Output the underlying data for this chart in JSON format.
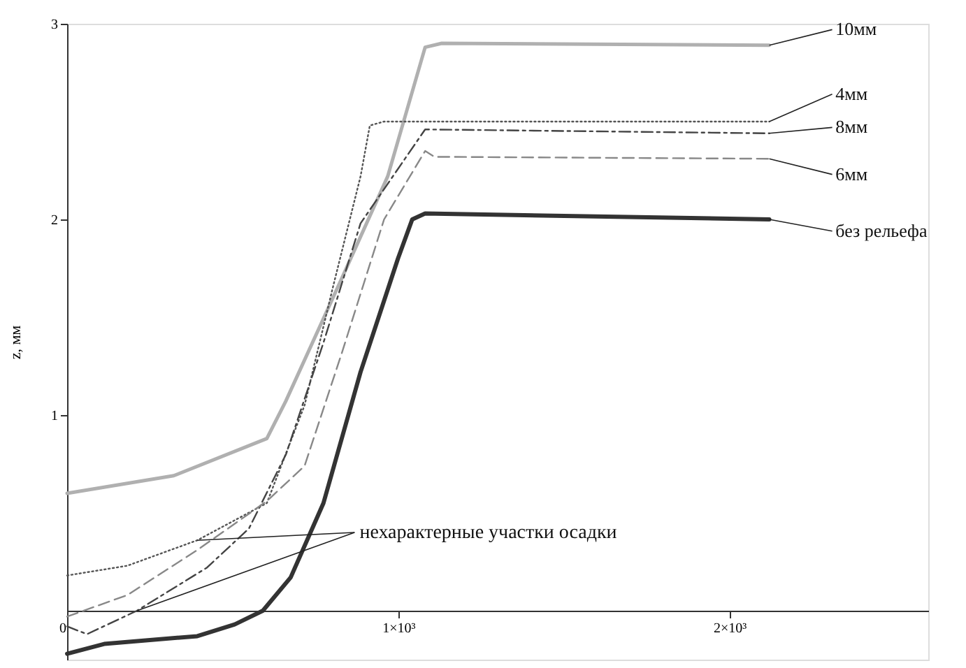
{
  "chart_data": {
    "type": "line",
    "ylabel": "z, мм",
    "xlim": [
      0,
      2600
    ],
    "ylim": [
      -0.25,
      3
    ],
    "xticks": [
      0,
      {
        "value": 1000,
        "label": "1×10³"
      },
      {
        "value": 2000,
        "label": "2×10³"
      }
    ],
    "yticks": [
      1,
      2,
      3
    ],
    "grid": false,
    "series": [
      {
        "name": "10мм",
        "color": "#b0b0b0",
        "line_style": "solid",
        "x": [
          0,
          322,
          603,
          660,
          827,
          968,
          1081,
          1131,
          2120
        ],
        "values": [
          0.6,
          0.69,
          0.88,
          1.07,
          1.69,
          2.22,
          2.88,
          2.9,
          2.89
        ]
      },
      {
        "name": "4мм",
        "color": "#555555",
        "line_style": "dotted",
        "x": [
          0,
          182,
          393,
          603,
          717,
          802,
          886,
          914,
          956,
          2120
        ],
        "values": [
          0.18,
          0.23,
          0.36,
          0.55,
          1.05,
          1.65,
          2.22,
          2.48,
          2.5,
          2.5
        ]
      },
      {
        "name": "8мм",
        "color": "#444444",
        "line_style": "dashdot",
        "x": [
          0,
          60,
          211,
          422,
          549,
          661,
          774,
          886,
          1081,
          2120
        ],
        "values": [
          -0.08,
          -0.12,
          0.0,
          0.22,
          0.42,
          0.8,
          1.37,
          1.98,
          2.46,
          2.44
        ]
      },
      {
        "name": "6мм",
        "color": "#888888",
        "line_style": "dashed",
        "x": [
          0,
          182,
          393,
          603,
          717,
          830,
          957,
          1081,
          1109,
          2120
        ],
        "values": [
          -0.03,
          0.08,
          0.31,
          0.56,
          0.74,
          1.32,
          2.0,
          2.35,
          2.32,
          2.31
        ]
      },
      {
        "name": "без рельефа",
        "color": "#333333",
        "line_style": "solid",
        "x": [
          0,
          112,
          393,
          506,
          591,
          675,
          774,
          886,
          999,
          1042,
          1081,
          2120
        ],
        "values": [
          -0.22,
          -0.17,
          -0.13,
          -0.07,
          0.0,
          0.17,
          0.55,
          1.22,
          1.8,
          2.0,
          2.03,
          2.0
        ]
      }
    ],
    "annotations": [
      {
        "text": "нехарактерные участки осадки",
        "x": 393,
        "y": 0.36
      }
    ]
  }
}
